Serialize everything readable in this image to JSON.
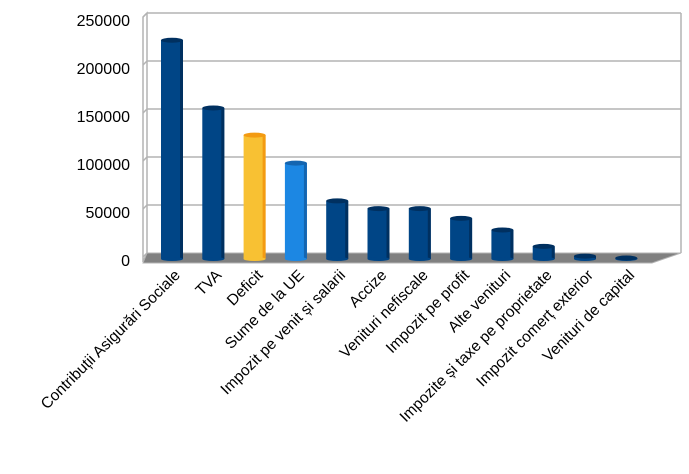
{
  "chart_data": {
    "type": "bar",
    "title": "",
    "xlabel": "",
    "ylabel": "",
    "ylim": [
      0,
      250000
    ],
    "yticks": [
      "0",
      "50000",
      "100000",
      "150000",
      "200000",
      "250000"
    ],
    "grid": true,
    "style": "3d-cylinder",
    "categories": [
      "Contribuții Asigurări Sociale",
      "TVA",
      "Deficit",
      "Sume de la UE",
      "Impozit pe venit și salarii",
      "Accize",
      "Venituri nefiscale",
      "Impozit pe profit",
      "Alte venituri",
      "Impozite și taxe pe proprietate",
      "Impozit comerț exterior",
      "Venituri de capital"
    ],
    "values": [
      226000,
      156000,
      128000,
      99000,
      60000,
      52000,
      52000,
      42000,
      30000,
      13000,
      3000,
      1000
    ],
    "colors": [
      "#004586",
      "#004586",
      "#f8c133",
      "#1c87e3",
      "#004586",
      "#004586",
      "#004586",
      "#004586",
      "#004586",
      "#004586",
      "#004586",
      "#004586"
    ],
    "edge_colors": [
      "#003060",
      "#003060",
      "#f39b12",
      "#1465b0",
      "#003060",
      "#003060",
      "#003060",
      "#003060",
      "#003060",
      "#003060",
      "#003060",
      "#003060"
    ]
  }
}
